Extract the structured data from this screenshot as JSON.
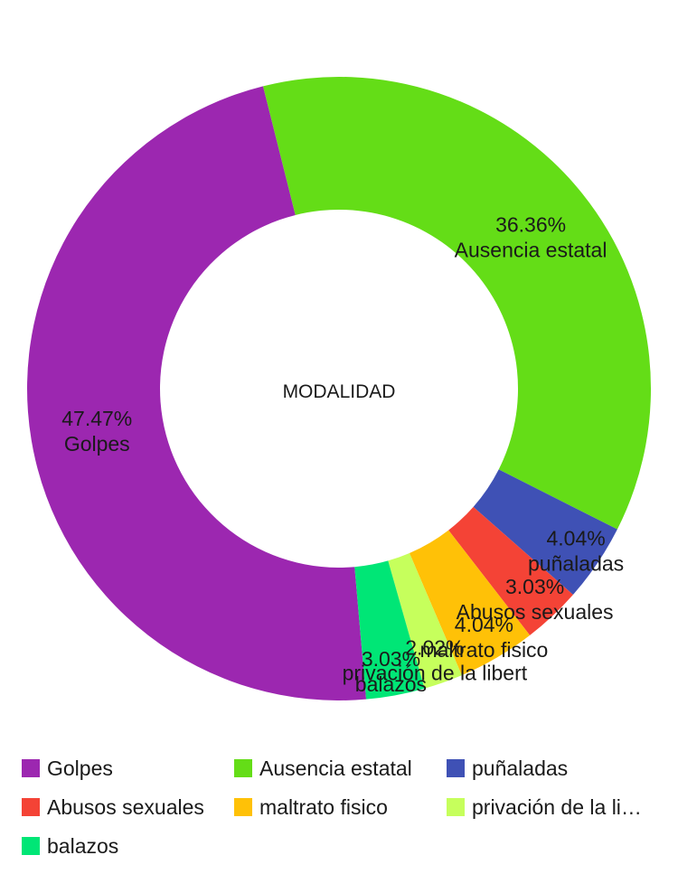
{
  "chart_data": {
    "type": "pie",
    "donut": true,
    "title": "MODALIDAD",
    "legend_position": "bottom",
    "slices": [
      {
        "label": "Golpes",
        "value": 47.47,
        "percent_label": "47.47%",
        "color": "#9c27b0",
        "legend_label": "Golpes"
      },
      {
        "label": "Ausencia estatal",
        "value": 36.36,
        "percent_label": "36.36%",
        "color": "#64dd17",
        "legend_label": "Ausencia estatal"
      },
      {
        "label": "puñaladas",
        "value": 4.04,
        "percent_label": "4.04%",
        "color": "#3f51b5",
        "legend_label": "puñaladas"
      },
      {
        "label": "Abusos sexuales",
        "value": 3.03,
        "percent_label": "3.03%",
        "color": "#f44336",
        "legend_label": "Abusos sexuales"
      },
      {
        "label": "maltrato fisico",
        "value": 4.04,
        "percent_label": "4.04%",
        "color": "#ffc107",
        "legend_label": "maltrato fisico"
      },
      {
        "label": "privación de la libert",
        "value": 2.02,
        "percent_label": "2.02%",
        "color": "#c6ff5c",
        "legend_label": "privación de la li…"
      },
      {
        "label": "balazos",
        "value": 3.03,
        "percent_label": "3.03%",
        "color": "#00e676",
        "legend_label": "balazos"
      }
    ]
  }
}
